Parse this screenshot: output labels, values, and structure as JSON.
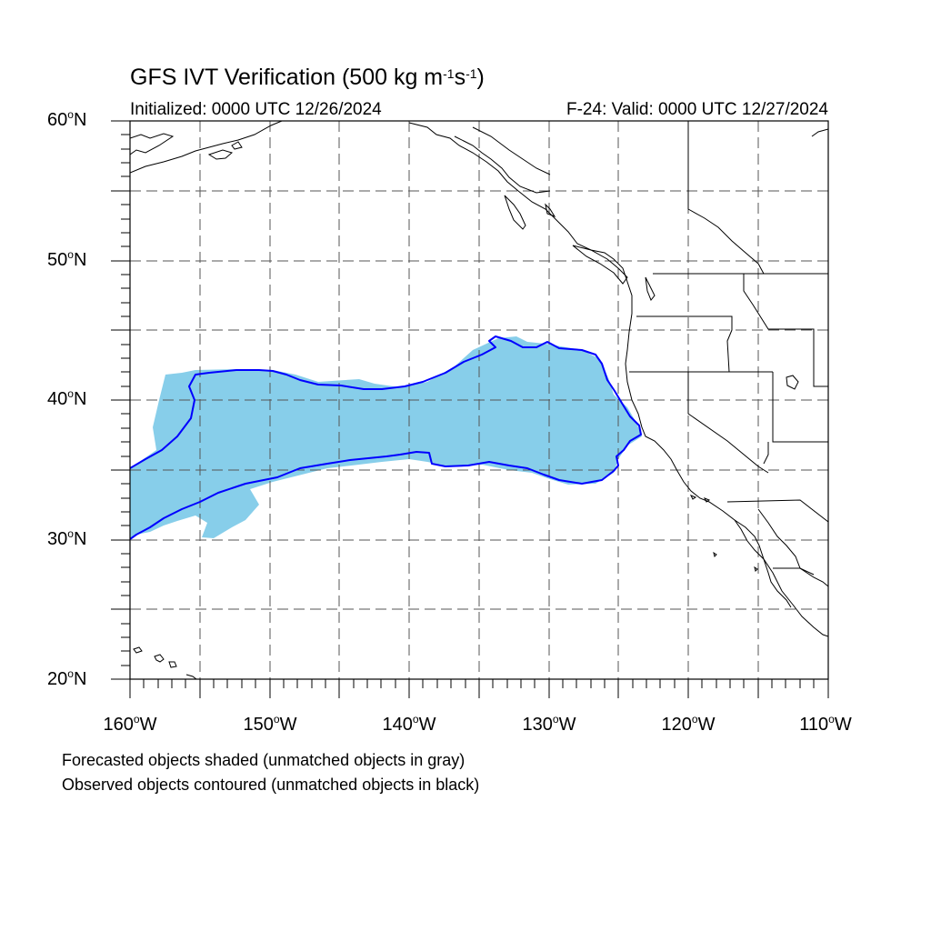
{
  "title": {
    "text_main": "GFS IVT Verification (500 kg m",
    "sup1": "-1",
    "text_mid": "s",
    "sup2": "-1",
    "text_end": ")"
  },
  "subtitle": {
    "initialized": "Initialized: 0000 UTC 12/26/2024",
    "valid": "F-24: Valid: 0000 UTC 12/27/2024"
  },
  "axes": {
    "lat_labels": [
      {
        "num": "60",
        "unit": "N"
      },
      {
        "num": "50",
        "unit": "N"
      },
      {
        "num": "40",
        "unit": "N"
      },
      {
        "num": "30",
        "unit": "N"
      },
      {
        "num": "20",
        "unit": "N"
      }
    ],
    "lon_labels": [
      {
        "num": "160",
        "unit": "W"
      },
      {
        "num": "150",
        "unit": "W"
      },
      {
        "num": "140",
        "unit": "W"
      },
      {
        "num": "130",
        "unit": "W"
      },
      {
        "num": "120",
        "unit": "W"
      },
      {
        "num": "110",
        "unit": "W"
      }
    ],
    "lat_range": [
      20,
      60
    ],
    "lon_range": [
      -160,
      -110
    ],
    "grid": "dashed every 5 degrees"
  },
  "notes": {
    "line1": "Forecasted objects shaded (unmatched objects in gray)",
    "line2": "Observed objects contoured (unmatched objects in black)"
  },
  "colors": {
    "forecast_fill": "#87ceea",
    "observed_contour": "#0000ff",
    "coastline": "#000000",
    "grid": "#555555"
  }
}
